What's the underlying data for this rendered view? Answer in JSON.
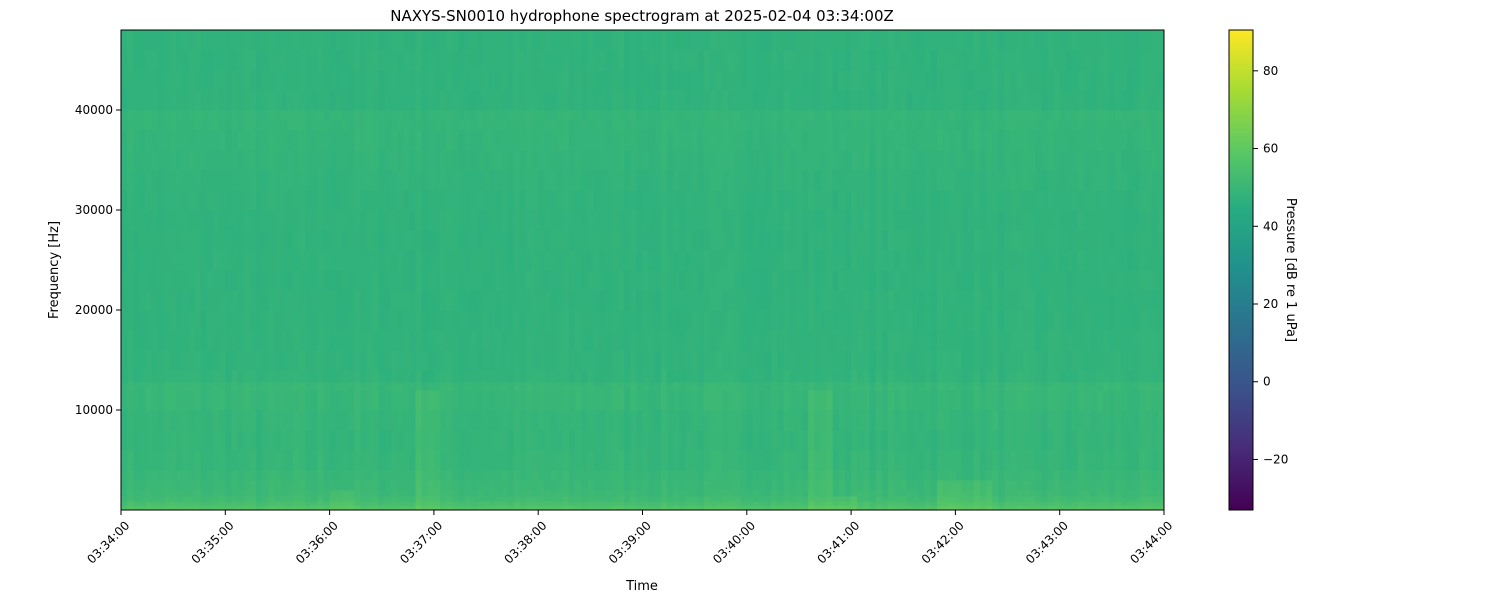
{
  "chart_data": {
    "type": "heatmap",
    "title": "NAXYS-SN0010 hydrophone spectrogram at 2025-02-04 03:34:00Z",
    "xlabel": "Time",
    "ylabel": "Frequency [Hz]",
    "x_range": [
      "03:34:00",
      "03:44:00"
    ],
    "x_ticks": [
      "03:34:00",
      "03:35:00",
      "03:36:00",
      "03:37:00",
      "03:38:00",
      "03:39:00",
      "03:40:00",
      "03:41:00",
      "03:42:00",
      "03:43:00",
      "03:44:00"
    ],
    "ylim": [
      0,
      48000
    ],
    "y_ticks": [
      10000,
      20000,
      30000,
      40000
    ],
    "colormap": "viridis",
    "colorbar": {
      "label": "Pressure [dB re 1 uPa]",
      "range": [
        -33,
        90.5
      ],
      "ticks": [
        -20,
        0,
        20,
        40,
        60,
        80
      ]
    },
    "level_profile_by_frequency": {
      "frequency_hz": [
        0,
        300,
        800,
        1500,
        3000,
        5000,
        8000,
        12500,
        13000,
        20000,
        30000,
        39500,
        40500,
        48000
      ],
      "level_db": [
        60,
        56,
        53,
        51,
        50,
        49,
        48.5,
        50,
        48,
        47.5,
        47.5,
        49,
        47.5,
        47.5
      ]
    },
    "broadband_events": [
      {
        "start": "03:36:00",
        "end": "03:36:15",
        "max_freq_hz": 2000
      },
      {
        "start": "03:36:50",
        "end": "03:37:05",
        "max_freq_hz": 12000
      },
      {
        "start": "03:40:35",
        "end": "03:40:50",
        "max_freq_hz": 12000
      },
      {
        "start": "03:40:50",
        "end": "03:41:05",
        "max_freq_hz": 1500
      },
      {
        "start": "03:41:50",
        "end": "03:42:20",
        "max_freq_hz": 3000
      }
    ]
  }
}
